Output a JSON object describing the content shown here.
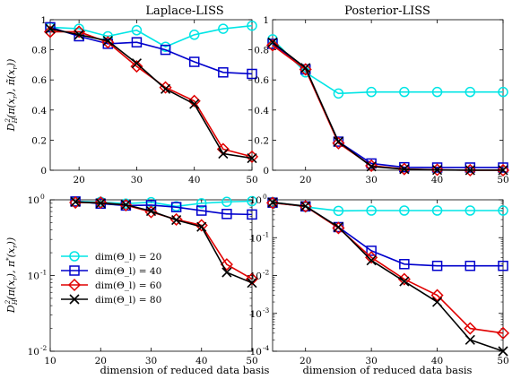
{
  "figure": {
    "xlabel": "dimension of reduced data basis",
    "ylabel_top": "D²_H(π(x_r), π̃(x_r))",
    "ylabel_bottom": "D²_H(π(x_r), π*(x_r))"
  },
  "legend": {
    "placement": "bottom-left of lower-left panel",
    "items": [
      {
        "label": "dim(Θ_l) = 20",
        "color": "#00e5e5",
        "marker": "circle"
      },
      {
        "label": "dim(Θ_l) = 40",
        "color": "#0000cc",
        "marker": "square"
      },
      {
        "label": "dim(Θ_l) = 60",
        "color": "#e00000",
        "marker": "diamond"
      },
      {
        "label": "dim(Θ_l) = 80",
        "color": "#000000",
        "marker": "x"
      }
    ]
  },
  "chart_data": [
    {
      "type": "line",
      "title": "Laplace-LISS",
      "yscale": "linear",
      "x": [
        15,
        20,
        25,
        30,
        35,
        40,
        45,
        50
      ],
      "xlim": [
        15,
        50
      ],
      "ylim": [
        0,
        1
      ],
      "xticks": [
        "20",
        "30",
        "40",
        "50"
      ],
      "yticks": [
        "0",
        "0.2",
        "0.4",
        "0.6",
        "0.8",
        "1"
      ],
      "series": [
        {
          "name": "dim(Θ_l) = 20",
          "values": [
            0.95,
            0.94,
            0.89,
            0.93,
            0.82,
            0.9,
            0.94,
            0.96
          ]
        },
        {
          "name": "dim(Θ_l) = 40",
          "values": [
            0.95,
            0.89,
            0.84,
            0.85,
            0.8,
            0.72,
            0.65,
            0.64
          ]
        },
        {
          "name": "dim(Θ_l) = 60",
          "values": [
            0.92,
            0.92,
            0.85,
            0.69,
            0.55,
            0.46,
            0.14,
            0.09
          ]
        },
        {
          "name": "dim(Θ_l) = 80",
          "values": [
            0.94,
            0.9,
            0.86,
            0.71,
            0.54,
            0.44,
            0.11,
            0.08
          ]
        }
      ]
    },
    {
      "type": "line",
      "title": "Posterior-LISS",
      "yscale": "linear",
      "x": [
        15,
        20,
        25,
        30,
        35,
        40,
        45,
        50
      ],
      "xlim": [
        15,
        50
      ],
      "ylim": [
        0,
        1
      ],
      "xticks": [
        "20",
        "30",
        "40",
        "50"
      ],
      "yticks": [
        "0",
        "0.2",
        "0.4",
        "0.6",
        "0.8",
        "1"
      ],
      "series": [
        {
          "name": "dim(Θ_l) = 20",
          "values": [
            0.87,
            0.65,
            0.51,
            0.52,
            0.52,
            0.52,
            0.52,
            0.52
          ]
        },
        {
          "name": "dim(Θ_l) = 40",
          "values": [
            0.84,
            0.67,
            0.19,
            0.045,
            0.02,
            0.018,
            0.018,
            0.018
          ]
        },
        {
          "name": "dim(Θ_l) = 60",
          "values": [
            0.83,
            0.67,
            0.18,
            0.03,
            0.008,
            0.003,
            0.0004,
            0.0003
          ]
        },
        {
          "name": "dim(Θ_l) = 80",
          "values": [
            0.85,
            0.68,
            0.19,
            0.025,
            0.007,
            0.002,
            0.0002,
            0.0001
          ]
        }
      ]
    },
    {
      "type": "line",
      "yscale": "log",
      "x": [
        15,
        20,
        25,
        30,
        35,
        40,
        45,
        50
      ],
      "xlim": [
        10,
        50
      ],
      "ylim": [
        0.01,
        1
      ],
      "xticks": [
        "10",
        "20",
        "30",
        "40",
        "50"
      ],
      "yticks": [
        {
          "base": "10",
          "exp": "-2"
        },
        {
          "base": "10",
          "exp": "-1"
        },
        {
          "base": "10",
          "exp": "0"
        }
      ],
      "series": [
        {
          "name": "dim(Θ_l) = 20",
          "values": [
            0.95,
            0.94,
            0.89,
            0.93,
            0.82,
            0.9,
            0.94,
            0.96
          ]
        },
        {
          "name": "dim(Θ_l) = 40",
          "values": [
            0.95,
            0.89,
            0.84,
            0.85,
            0.8,
            0.72,
            0.65,
            0.64
          ]
        },
        {
          "name": "dim(Θ_l) = 60",
          "values": [
            0.92,
            0.92,
            0.85,
            0.69,
            0.55,
            0.46,
            0.14,
            0.09
          ]
        },
        {
          "name": "dim(Θ_l) = 80",
          "values": [
            0.94,
            0.9,
            0.86,
            0.71,
            0.54,
            0.44,
            0.11,
            0.08
          ]
        }
      ]
    },
    {
      "type": "line",
      "yscale": "log",
      "x": [
        15,
        20,
        25,
        30,
        35,
        40,
        45,
        50
      ],
      "xlim": [
        15,
        50
      ],
      "ylim": [
        0.0001,
        1
      ],
      "xticks": [
        "20",
        "30",
        "40",
        "50"
      ],
      "yticks": [
        {
          "base": "10",
          "exp": "-4"
        },
        {
          "base": "10",
          "exp": "-3"
        },
        {
          "base": "10",
          "exp": "-2"
        },
        {
          "base": "10",
          "exp": "-1"
        },
        {
          "base": "10",
          "exp": "0"
        }
      ],
      "series": [
        {
          "name": "dim(Θ_l) = 20",
          "values": [
            0.87,
            0.65,
            0.51,
            0.52,
            0.52,
            0.52,
            0.52,
            0.52
          ]
        },
        {
          "name": "dim(Θ_l) = 40",
          "values": [
            0.84,
            0.67,
            0.19,
            0.045,
            0.02,
            0.018,
            0.018,
            0.018
          ]
        },
        {
          "name": "dim(Θ_l) = 60",
          "values": [
            0.83,
            0.67,
            0.18,
            0.03,
            0.008,
            0.003,
            0.0004,
            0.0003
          ]
        },
        {
          "name": "dim(Θ_l) = 80",
          "values": [
            0.85,
            0.68,
            0.19,
            0.025,
            0.007,
            0.002,
            0.0002,
            0.0001
          ]
        }
      ]
    }
  ]
}
